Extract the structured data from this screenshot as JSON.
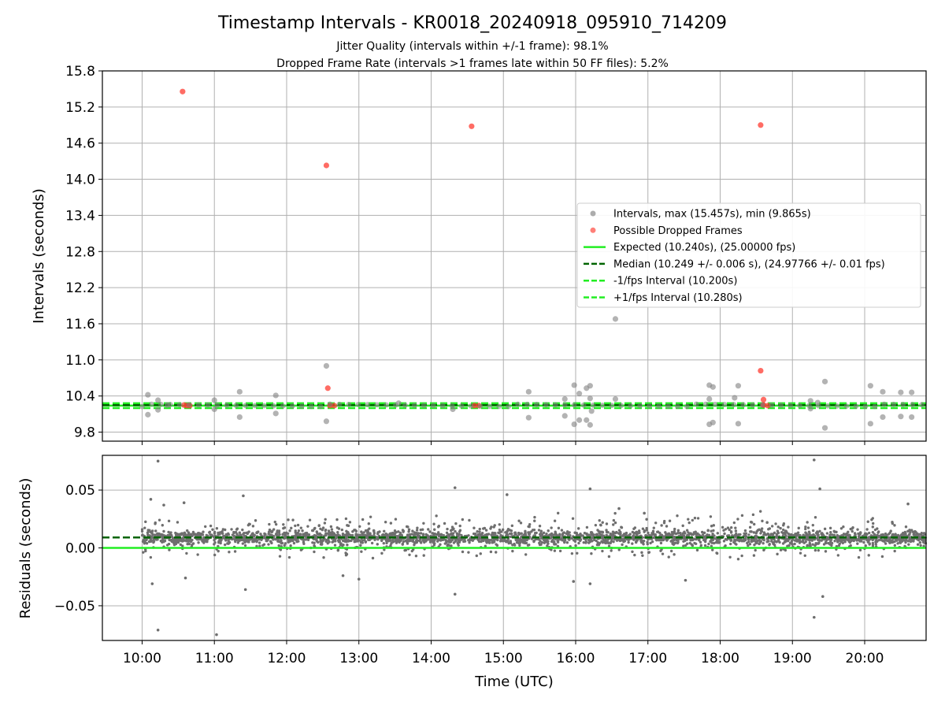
{
  "chart_data": [
    {
      "type": "scatter",
      "title": "Timestamp Intervals - KR0018_20240918_095910_714209",
      "subtitle_lines": [
        "Jitter Quality (intervals within +/-1 frame): 98.1%",
        "Dropped Frame Rate (intervals >1 frames late within 50 FF files): 5.2%"
      ],
      "ylabel": "Intervals (seconds)",
      "ylim": [
        9.65,
        15.8
      ],
      "y_ticks": [
        "9.8",
        "10.4",
        "11.0",
        "11.6",
        "12.2",
        "12.8",
        "13.4",
        "14.0",
        "14.6",
        "15.2",
        "15.8"
      ],
      "xlim_hours": [
        9.45,
        20.85
      ],
      "grid": true,
      "legend_position": "center-right",
      "legend": [
        {
          "label": "Intervals, max (15.457s), min (9.865s)",
          "kind": "dot",
          "color": "#808080"
        },
        {
          "label": "Possible Dropped Frames",
          "kind": "dot",
          "color": "#ff3b30"
        },
        {
          "label": "Expected (10.240s), (25.00000 fps)",
          "kind": "solid",
          "color": "#22ee22"
        },
        {
          "label": "Median (10.249 +/- 0.006 s), (24.97766 +/- 0.01 fps)",
          "kind": "dashed",
          "color": "#006400"
        },
        {
          "label": "-1/fps Interval (10.200s)",
          "kind": "dashed",
          "color": "#22ee22"
        },
        {
          "label": "+1/fps Interval (10.280s)",
          "kind": "dashed",
          "color": "#22ee22"
        }
      ],
      "reference_lines": {
        "expected": 10.24,
        "median": 10.249,
        "minus_1fps": 10.2,
        "plus_1fps": 10.28
      },
      "series": [
        {
          "name": "Intervals, max (15.457s), min (9.865s)",
          "color": "#808080",
          "points": [
            [
              10.08,
              10.42
            ],
            [
              10.08,
              10.09
            ],
            [
              10.22,
              10.33
            ],
            [
              10.22,
              10.17
            ],
            [
              10.35,
              10.25
            ],
            [
              11.0,
              10.33
            ],
            [
              11.0,
              10.18
            ],
            [
              11.35,
              10.47
            ],
            [
              11.35,
              10.05
            ],
            [
              11.85,
              10.41
            ],
            [
              11.85,
              10.11
            ],
            [
              12.55,
              10.9
            ],
            [
              12.55,
              9.98
            ],
            [
              13.55,
              10.28
            ],
            [
              14.3,
              10.18
            ],
            [
              15.35,
              10.47
            ],
            [
              15.35,
              10.04
            ],
            [
              15.85,
              10.35
            ],
            [
              15.85,
              10.07
            ],
            [
              15.98,
              10.58
            ],
            [
              15.98,
              9.93
            ],
            [
              16.05,
              10.44
            ],
            [
              16.05,
              10.0
            ],
            [
              16.15,
              10.53
            ],
            [
              16.15,
              10.0
            ],
            [
              16.2,
              10.57
            ],
            [
              16.2,
              10.36
            ],
            [
              16.2,
              9.92
            ],
            [
              16.22,
              10.15
            ],
            [
              16.55,
              11.68
            ],
            [
              16.55,
              10.35
            ],
            [
              17.85,
              10.58
            ],
            [
              17.85,
              10.35
            ],
            [
              17.85,
              9.93
            ],
            [
              17.9,
              10.55
            ],
            [
              17.9,
              9.96
            ],
            [
              18.2,
              10.37
            ],
            [
              18.25,
              10.57
            ],
            [
              18.25,
              9.94
            ],
            [
              18.6,
              10.25
            ],
            [
              19.25,
              10.32
            ],
            [
              19.25,
              10.19
            ],
            [
              19.35,
              10.29
            ],
            [
              19.45,
              10.64
            ],
            [
              19.45,
              9.87
            ],
            [
              20.08,
              10.57
            ],
            [
              20.08,
              9.94
            ],
            [
              20.25,
              10.47
            ],
            [
              20.25,
              10.05
            ],
            [
              20.5,
              10.46
            ],
            [
              20.5,
              10.06
            ],
            [
              20.65,
              10.46
            ],
            [
              20.65,
              10.05
            ]
          ]
        },
        {
          "name": "Possible Dropped Frames",
          "color": "#ff3b30",
          "points": [
            [
              10.56,
              15.457
            ],
            [
              10.58,
              10.25
            ],
            [
              10.62,
              10.24
            ],
            [
              10.66,
              10.24
            ],
            [
              12.55,
              14.23
            ],
            [
              12.57,
              10.53
            ],
            [
              12.6,
              10.24
            ],
            [
              12.66,
              10.24
            ],
            [
              14.56,
              14.88
            ],
            [
              14.6,
              10.24
            ],
            [
              14.66,
              10.24
            ],
            [
              18.56,
              14.9
            ],
            [
              18.56,
              10.82
            ],
            [
              18.6,
              10.34
            ],
            [
              18.6,
              10.25
            ],
            [
              18.66,
              10.24
            ]
          ]
        }
      ]
    },
    {
      "type": "scatter",
      "ylabel": "Residuals (seconds)",
      "xlabel": "Time (UTC)",
      "ylim": [
        -0.08,
        0.08
      ],
      "y_ticks": [
        "−0.05",
        "0.00",
        "0.05"
      ],
      "x_ticks": [
        "10:00",
        "11:00",
        "12:00",
        "13:00",
        "14:00",
        "15:00",
        "16:00",
        "17:00",
        "18:00",
        "19:00",
        "20:00"
      ],
      "xlim_hours": [
        9.45,
        20.85
      ],
      "grid": true,
      "reference_lines": {
        "zero": 0.0,
        "median_offset": 0.009
      },
      "series": [
        {
          "name": "Residuals",
          "color": "#6e6e6e",
          "points": [
            [
              10.22,
              0.075
            ],
            [
              10.22,
              -0.071
            ],
            [
              11.03,
              -0.075
            ],
            [
              12.55,
              -0.001
            ],
            [
              14.33,
              0.052
            ],
            [
              14.33,
              -0.04
            ],
            [
              15.05,
              0.046
            ],
            [
              16.2,
              0.051
            ],
            [
              16.2,
              -0.031
            ],
            [
              19.3,
              0.076
            ],
            [
              19.3,
              -0.06
            ],
            [
              19.38,
              0.051
            ],
            [
              19.42,
              -0.042
            ],
            [
              10.12,
              0.042
            ],
            [
              10.3,
              0.037
            ],
            [
              10.58,
              0.039
            ],
            [
              11.4,
              0.045
            ],
            [
              11.43,
              -0.036
            ],
            [
              15.97,
              -0.029
            ],
            [
              16.6,
              0.034
            ],
            [
              17.52,
              -0.028
            ],
            [
              20.6,
              0.038
            ],
            [
              10.14,
              -0.031
            ],
            [
              10.6,
              -0.026
            ],
            [
              12.78,
              -0.024
            ],
            [
              13.0,
              -0.027
            ],
            [
              16.95,
              0.03
            ],
            [
              18.65,
              0.022
            ]
          ]
        }
      ],
      "residual_cloud": {
        "center": 0.009,
        "core_spread": 0.004,
        "outer_spread": 0.012,
        "points_per_hour": 280,
        "denser_band_hours": [
          16.5,
          19.0
        ]
      }
    }
  ]
}
